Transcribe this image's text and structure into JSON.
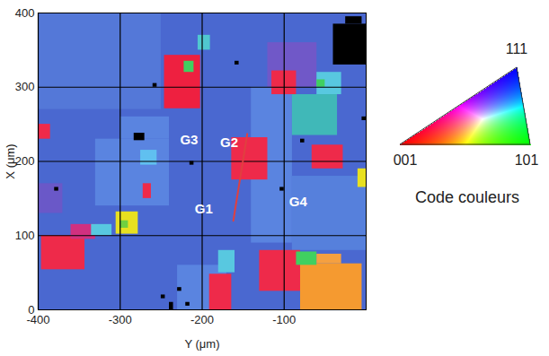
{
  "chart_data": {
    "type": "orientation_map",
    "x_label": "Y (μm)",
    "y_label": "X (μm)",
    "xlim": [
      -400,
      0
    ],
    "xticks": [
      -400,
      -300,
      -200,
      -100
    ],
    "ylim": [
      0,
      400
    ],
    "yticks": [
      0,
      100,
      200,
      300,
      400
    ],
    "grid": true,
    "grains": [
      {
        "x1": -400,
        "x2": 0,
        "y1": 0,
        "y2": 400,
        "color": "#4a68d0"
      },
      {
        "x1": -400,
        "x2": -250,
        "y1": 270,
        "y2": 400,
        "color": "#5478d8"
      },
      {
        "x1": -330,
        "x2": -240,
        "y1": 140,
        "y2": 230,
        "color": "#5a84e0"
      },
      {
        "x1": -140,
        "x2": -90,
        "y1": 90,
        "y2": 300,
        "color": "#5a84e0"
      },
      {
        "x1": -120,
        "x2": -60,
        "y1": 300,
        "y2": 360,
        "color": "#7058c8"
      },
      {
        "x1": -90,
        "x2": 0,
        "y1": 80,
        "y2": 180,
        "color": "#5680dc"
      },
      {
        "x1": -400,
        "x2": -370,
        "y1": 130,
        "y2": 170,
        "color": "#6a58c8"
      },
      {
        "x1": -230,
        "x2": -170,
        "y1": 0,
        "y2": 60,
        "color": "#5a84e0"
      },
      {
        "x1": -300,
        "x2": -240,
        "y1": 230,
        "y2": 260,
        "color": "#5a84e0"
      },
      {
        "x1": -246,
        "x2": -202,
        "y1": 271,
        "y2": 343,
        "color": "#ee2040"
      },
      {
        "x1": -222,
        "x2": -210,
        "y1": 320,
        "y2": 335,
        "color": "#40d060"
      },
      {
        "x1": -205,
        "x2": -190,
        "y1": 350,
        "y2": 370,
        "color": "#50c8d0"
      },
      {
        "x1": -40,
        "x2": 0,
        "y1": 330,
        "y2": 385,
        "color": "#000000"
      },
      {
        "x1": -25,
        "x2": -5,
        "y1": 385,
        "y2": 395,
        "color": "#000000"
      },
      {
        "x1": -90,
        "x2": -35,
        "y1": 235,
        "y2": 290,
        "color": "#40b8b8"
      },
      {
        "x1": -60,
        "x2": -30,
        "y1": 290,
        "y2": 320,
        "color": "#58c8e0"
      },
      {
        "x1": -115,
        "x2": -85,
        "y1": 290,
        "y2": 322,
        "color": "#ee2a4a"
      },
      {
        "x1": -60,
        "x2": -50,
        "y1": 300,
        "y2": 310,
        "color": "#40d060"
      },
      {
        "x1": -164,
        "x2": -120,
        "y1": 175,
        "y2": 232,
        "color": "#ee2a4a"
      },
      {
        "x1": -66,
        "x2": -28,
        "y1": 190,
        "y2": 222,
        "color": "#ee2a4a"
      },
      {
        "x1": -10,
        "x2": 0,
        "y1": 165,
        "y2": 190,
        "color": "#e8e020"
      },
      {
        "x1": -275,
        "x2": -255,
        "y1": 195,
        "y2": 215,
        "color": "#60c0f0"
      },
      {
        "x1": -283,
        "x2": -270,
        "y1": 228,
        "y2": 238,
        "color": "#000000"
      },
      {
        "x1": -272,
        "x2": -262,
        "y1": 150,
        "y2": 170,
        "color": "#ee2a4a"
      },
      {
        "x1": -305,
        "x2": -278,
        "y1": 102,
        "y2": 132,
        "color": "#e8e020"
      },
      {
        "x1": -300,
        "x2": -290,
        "y1": 110,
        "y2": 120,
        "color": "#70d040"
      },
      {
        "x1": -396,
        "x2": -343,
        "y1": 54,
        "y2": 100,
        "color": "#ee2a4a"
      },
      {
        "x1": -360,
        "x2": -330,
        "y1": 95,
        "y2": 115,
        "color": "#d03080"
      },
      {
        "x1": -400,
        "x2": -385,
        "y1": 230,
        "y2": 250,
        "color": "#ee2a4a"
      },
      {
        "x1": -335,
        "x2": -310,
        "y1": 100,
        "y2": 115,
        "color": "#58c8e0"
      },
      {
        "x1": -191,
        "x2": -164,
        "y1": 0,
        "y2": 48,
        "color": "#ee2a4a"
      },
      {
        "x1": -180,
        "x2": -160,
        "y1": 50,
        "y2": 80,
        "color": "#58c8e0"
      },
      {
        "x1": -130,
        "x2": -80,
        "y1": 25,
        "y2": 80,
        "color": "#ee2a4a"
      },
      {
        "x1": -80,
        "x2": -5,
        "y1": 0,
        "y2": 62,
        "color": "#f59a30"
      },
      {
        "x1": -85,
        "x2": -60,
        "y1": 60,
        "y2": 78,
        "color": "#40d060"
      },
      {
        "x1": -60,
        "x2": -30,
        "y1": 62,
        "y2": 75,
        "color": "#f5a040"
      },
      {
        "x1": -260,
        "x2": -255,
        "y1": 300,
        "y2": 305,
        "color": "#000000"
      },
      {
        "x1": -215,
        "x2": -210,
        "y1": 195,
        "y2": 200,
        "color": "#000000"
      },
      {
        "x1": -160,
        "x2": -155,
        "y1": 330,
        "y2": 335,
        "color": "#000000"
      },
      {
        "x1": -240,
        "x2": -235,
        "y1": 0,
        "y2": 10,
        "color": "#000000"
      },
      {
        "x1": -250,
        "x2": -245,
        "y1": 15,
        "y2": 20,
        "color": "#000000"
      },
      {
        "x1": -220,
        "x2": -215,
        "y1": 5,
        "y2": 10,
        "color": "#000000"
      },
      {
        "x1": -230,
        "x2": -225,
        "y1": 25,
        "y2": 30,
        "color": "#000000"
      },
      {
        "x1": -105,
        "x2": -100,
        "y1": 160,
        "y2": 165,
        "color": "#000000"
      },
      {
        "x1": -5,
        "x2": 0,
        "y1": 255,
        "y2": 260,
        "color": "#000000"
      },
      {
        "x1": -380,
        "x2": -375,
        "y1": 160,
        "y2": 165,
        "color": "#000000"
      },
      {
        "x1": -80,
        "x2": -75,
        "y1": 225,
        "y2": 230,
        "color": "#000000"
      }
    ],
    "annotations": [
      {
        "text": "G1",
        "x": -198,
        "y": 136
      },
      {
        "text": "G2",
        "x": -167,
        "y": 225
      },
      {
        "text": "G3",
        "x": -216,
        "y": 229
      },
      {
        "text": "G4",
        "x": -83,
        "y": 145
      }
    ],
    "line": {
      "x": [
        -162,
        -145
      ],
      "y": [
        120,
        237
      ],
      "color": "#e04040"
    },
    "color_key": {
      "title": "Code couleurs",
      "corners": [
        {
          "label": "001",
          "color": "#ff0000"
        },
        {
          "label": "101",
          "color": "#00ff00"
        },
        {
          "label": "111",
          "color": "#0000ff"
        }
      ]
    }
  }
}
